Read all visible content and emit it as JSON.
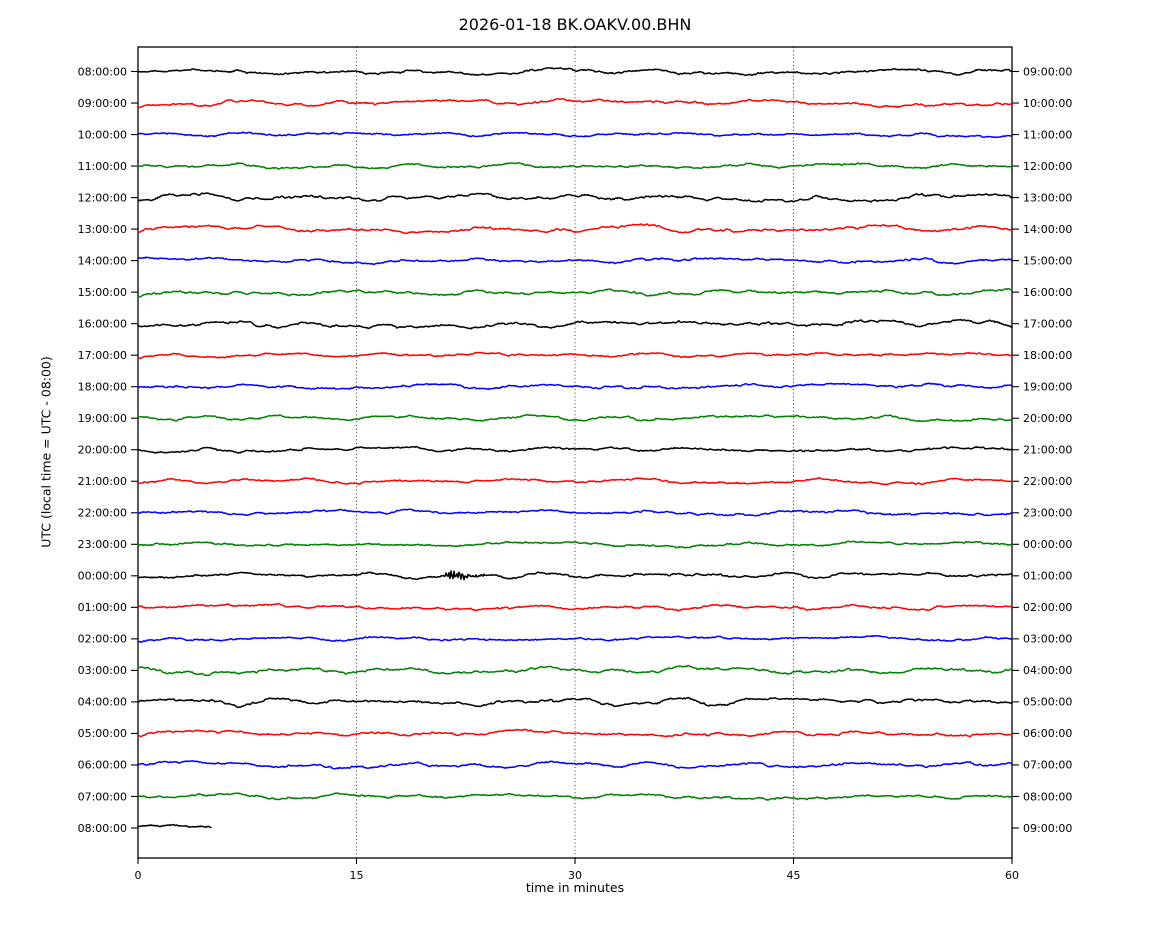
{
  "chart_data": {
    "type": "line",
    "subtype": "helicorder-dayplot-seismogram",
    "title": "2026-01-18 BK.OAKV.00.BHN",
    "date": "2026-01-18",
    "channel_id": "BK.OAKV.00.BHN",
    "xlabel": "time in minutes",
    "ylabel": "UTC (local time = UTC - 08:00)",
    "xlim": [
      0,
      60
    ],
    "xticks": [
      "0",
      "15",
      "30",
      "45",
      "60"
    ],
    "grid": {
      "vertical_dotted_minutes": [
        15,
        30,
        45
      ],
      "horizontal": false
    },
    "legend": "none",
    "trace_colors_cycle": [
      "#000000",
      "#ff0000",
      "#0000ff",
      "#008000"
    ],
    "traces": [
      {
        "left_label": "08:00:00",
        "right_label": "09:00:00",
        "color": "#000000",
        "start_min": 0,
        "end_min": 60,
        "character": "background noise"
      },
      {
        "left_label": "09:00:00",
        "right_label": "10:00:00",
        "color": "#ff0000",
        "start_min": 0,
        "end_min": 60,
        "character": "background noise"
      },
      {
        "left_label": "10:00:00",
        "right_label": "11:00:00",
        "color": "#0000ff",
        "start_min": 0,
        "end_min": 60,
        "character": "background noise"
      },
      {
        "left_label": "11:00:00",
        "right_label": "12:00:00",
        "color": "#008000",
        "start_min": 0,
        "end_min": 60,
        "character": "background noise"
      },
      {
        "left_label": "12:00:00",
        "right_label": "13:00:00",
        "color": "#000000",
        "start_min": 0,
        "end_min": 60,
        "character": "background noise"
      },
      {
        "left_label": "13:00:00",
        "right_label": "14:00:00",
        "color": "#ff0000",
        "start_min": 0,
        "end_min": 60,
        "character": "background noise"
      },
      {
        "left_label": "14:00:00",
        "right_label": "15:00:00",
        "color": "#0000ff",
        "start_min": 0,
        "end_min": 60,
        "character": "background noise"
      },
      {
        "left_label": "15:00:00",
        "right_label": "16:00:00",
        "color": "#008000",
        "start_min": 0,
        "end_min": 60,
        "character": "background noise"
      },
      {
        "left_label": "16:00:00",
        "right_label": "17:00:00",
        "color": "#000000",
        "start_min": 0,
        "end_min": 60,
        "character": "background noise"
      },
      {
        "left_label": "17:00:00",
        "right_label": "18:00:00",
        "color": "#ff0000",
        "start_min": 0,
        "end_min": 60,
        "character": "background noise"
      },
      {
        "left_label": "18:00:00",
        "right_label": "19:00:00",
        "color": "#0000ff",
        "start_min": 0,
        "end_min": 60,
        "character": "background noise"
      },
      {
        "left_label": "19:00:00",
        "right_label": "20:00:00",
        "color": "#008000",
        "start_min": 0,
        "end_min": 60,
        "character": "background noise"
      },
      {
        "left_label": "20:00:00",
        "right_label": "21:00:00",
        "color": "#000000",
        "start_min": 0,
        "end_min": 60,
        "character": "background noise"
      },
      {
        "left_label": "21:00:00",
        "right_label": "22:00:00",
        "color": "#ff0000",
        "start_min": 0,
        "end_min": 60,
        "character": "background noise"
      },
      {
        "left_label": "22:00:00",
        "right_label": "23:00:00",
        "color": "#0000ff",
        "start_min": 0,
        "end_min": 60,
        "character": "background noise"
      },
      {
        "left_label": "23:00:00",
        "right_label": "00:00:00",
        "color": "#008000",
        "start_min": 0,
        "end_min": 60,
        "character": "background noise"
      },
      {
        "left_label": "00:00:00",
        "right_label": "01:00:00",
        "color": "#000000",
        "start_min": 0,
        "end_min": 60,
        "character": "background noise with event",
        "event": {
          "type": "high-frequency burst",
          "start_min": 20.8,
          "end_min": 24.6,
          "peak_min": 21.8
        }
      },
      {
        "left_label": "01:00:00",
        "right_label": "02:00:00",
        "color": "#ff0000",
        "start_min": 0,
        "end_min": 60,
        "character": "background noise"
      },
      {
        "left_label": "02:00:00",
        "right_label": "03:00:00",
        "color": "#0000ff",
        "start_min": 0,
        "end_min": 60,
        "character": "background noise"
      },
      {
        "left_label": "03:00:00",
        "right_label": "04:00:00",
        "color": "#008000",
        "start_min": 0,
        "end_min": 60,
        "character": "background noise"
      },
      {
        "left_label": "04:00:00",
        "right_label": "05:00:00",
        "color": "#000000",
        "start_min": 0,
        "end_min": 60,
        "character": "background noise"
      },
      {
        "left_label": "05:00:00",
        "right_label": "06:00:00",
        "color": "#ff0000",
        "start_min": 0,
        "end_min": 60,
        "character": "background noise"
      },
      {
        "left_label": "06:00:00",
        "right_label": "07:00:00",
        "color": "#0000ff",
        "start_min": 0,
        "end_min": 60,
        "character": "background noise"
      },
      {
        "left_label": "07:00:00",
        "right_label": "08:00:00",
        "color": "#008000",
        "start_min": 0,
        "end_min": 60,
        "character": "background noise"
      },
      {
        "left_label": "08:00:00",
        "right_label": "09:00:00",
        "color": "#000000",
        "start_min": 0,
        "end_min": 5,
        "character": "partial trace, background noise"
      }
    ]
  }
}
